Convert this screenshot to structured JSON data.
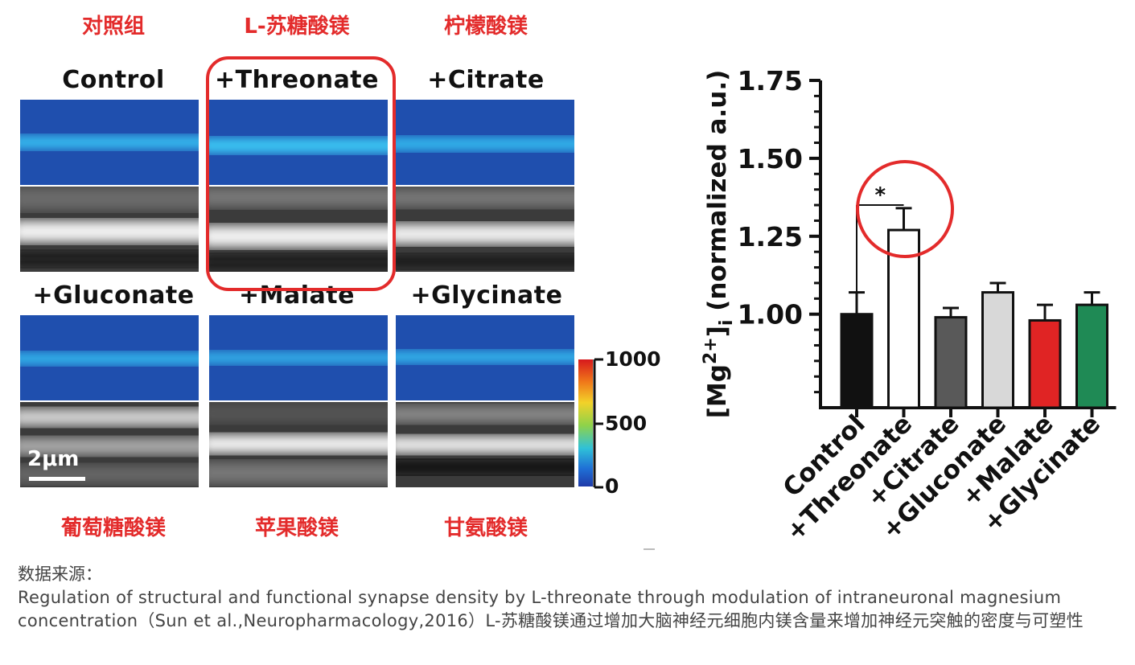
{
  "figure": {
    "cn_labels_top": [
      "对照组",
      "L-苏糖酸镁",
      "柠檬酸镁"
    ],
    "cn_labels_bottom": [
      "葡萄糖酸镁",
      "苹果酸镁",
      "甘氨酸镁"
    ],
    "panel_titles": [
      "Control",
      "+Threonate",
      "+Citrate",
      "+Gluconate",
      "+Malate",
      "+Glycinate"
    ],
    "scale_bar_label": "2μm",
    "colorbar_ticks": [
      "1000",
      "500",
      "0"
    ]
  },
  "chart_data": {
    "type": "bar",
    "categories": [
      "Control",
      "+Threonate",
      "+Citrate",
      "+Gluconate",
      "+Malate",
      "+Glycinate"
    ],
    "values": [
      1.0,
      1.27,
      0.99,
      1.07,
      0.98,
      1.03
    ],
    "errors": [
      0.07,
      0.07,
      0.03,
      0.03,
      0.05,
      0.04
    ],
    "bar_colors": [
      "#111111",
      "#ffffff",
      "#595959",
      "#d8d8d8",
      "#e02424",
      "#1f8a55"
    ],
    "ylabel_parts": {
      "pre": "[Mg",
      "sup": "2+",
      "mid": "]",
      "sub": "i",
      "post": " (normalized a.u.)"
    },
    "ylim": [
      0.7,
      1.75
    ],
    "yticks": [
      "1.00",
      "1.25",
      "1.50",
      "1.75"
    ],
    "ytick_values": [
      1.0,
      1.25,
      1.5,
      1.75
    ],
    "significance": "*"
  },
  "source": {
    "title": "数据来源：",
    "body": "Regulation of structural and functional synapse density by L-threonate through modulation of intraneuronal magnesium concentration（Sun et al.,Neuropharmacology,2016）L-苏糖酸镁通过增加大脑神经元细胞内镁含量来增加神经元突触的密度与可塑性"
  },
  "colors": {
    "highlight_red": "#e32b2b",
    "panel_blue": "#1f4fae",
    "signal_cyan": "#35b8ee"
  }
}
